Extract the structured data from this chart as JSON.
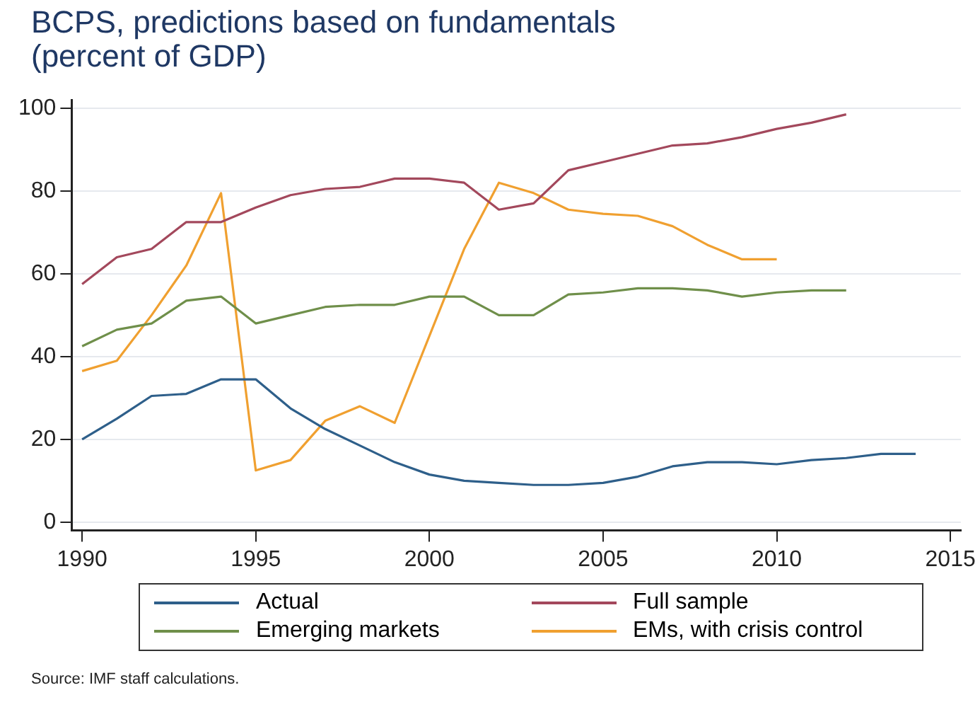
{
  "chart_data": {
    "type": "line",
    "title": "BCPS, predictions based on fundamentals",
    "subtitle": "(percent of GDP)",
    "x": [
      1990,
      1991,
      1992,
      1993,
      1994,
      1995,
      1996,
      1997,
      1998,
      1999,
      2000,
      2001,
      2002,
      2003,
      2004,
      2005,
      2006,
      2007,
      2008,
      2009,
      2010,
      2011,
      2012,
      2013,
      2014
    ],
    "series": [
      {
        "name": "Actual",
        "color": "#2e5f8a",
        "values": [
          20,
          25,
          30.5,
          31,
          34.5,
          34.5,
          27.5,
          22.5,
          18.5,
          14.5,
          11.5,
          10,
          9.5,
          9,
          9,
          9.5,
          11,
          13.5,
          14.5,
          14.5,
          14,
          15,
          15.5,
          16.5,
          16.5
        ]
      },
      {
        "name": "Full sample",
        "color": "#a3485c",
        "values": [
          57.5,
          64,
          66,
          72.5,
          72.5,
          76,
          79,
          80.5,
          81,
          83,
          83,
          82,
          75.5,
          77,
          85,
          87,
          89,
          91,
          91.5,
          93,
          95,
          96.5,
          98.5,
          null,
          null
        ]
      },
      {
        "name": "Emerging markets",
        "color": "#6f8f4a",
        "values": [
          42.5,
          46.5,
          48,
          53.5,
          54.5,
          48,
          50,
          52,
          52.5,
          52.5,
          54.5,
          54.5,
          50,
          50,
          55,
          55.5,
          56.5,
          56.5,
          56,
          54.5,
          55.5,
          56,
          56,
          null,
          null
        ]
      },
      {
        "name": "EMs, with crisis control",
        "color": "#f0a030",
        "values": [
          36.5,
          39,
          50,
          62,
          79.5,
          12.5,
          15,
          24.5,
          28,
          24,
          45,
          66,
          82,
          79.5,
          75.5,
          74.5,
          74,
          71.5,
          67,
          63.5,
          63.5,
          null,
          null,
          null,
          null
        ]
      }
    ],
    "xlim": [
      1989.7,
      2015.3
    ],
    "xticks": [
      1990,
      1995,
      2000,
      2005,
      2010,
      2015
    ],
    "ylim": [
      -2,
      102
    ],
    "yticks": [
      0,
      20,
      40,
      60,
      80,
      100
    ],
    "grid": "y",
    "legend": "bottom",
    "marker": "none",
    "line_style": "solid",
    "annotations": [
      "Source: IMF staff calculations."
    ]
  }
}
